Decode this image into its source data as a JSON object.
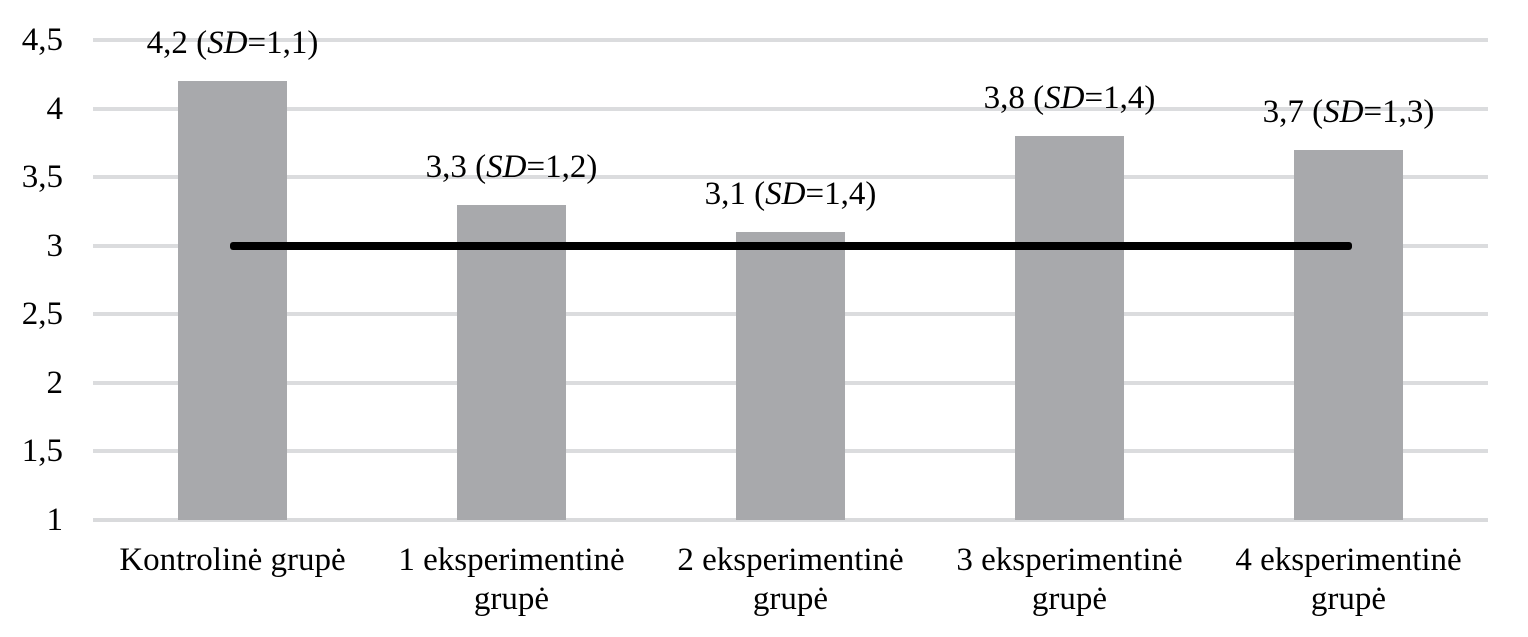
{
  "chart_data": {
    "type": "bar",
    "title": "",
    "xlabel": "",
    "ylabel": "",
    "grid": true,
    "legend": "none",
    "background_color": "#ffffff",
    "bar_color": "#a8a9ac",
    "gridline_color": "#dbdcde",
    "axis_line_color": "#d9dadc",
    "text_color": "#000000",
    "ylim": [
      1,
      4.5
    ],
    "y_tick_step": 0.5,
    "decimal_separator": ",",
    "y_ticks": [
      {
        "value": 4.5,
        "label": "4,5"
      },
      {
        "value": 4,
        "label": "4"
      },
      {
        "value": 3.5,
        "label": "3,5"
      },
      {
        "value": 3,
        "label": "3"
      },
      {
        "value": 2.5,
        "label": "2,5"
      },
      {
        "value": 2,
        "label": "2"
      },
      {
        "value": 1.5,
        "label": "1,5"
      },
      {
        "value": 1,
        "label": "1"
      }
    ],
    "categories": [
      "Kontrolinė grupė",
      "1 eksperimentinė grupė",
      "2 eksperimentinė grupė",
      "3 eksperimentinė grupė",
      "4 eksperimentinė grupė"
    ],
    "values": [
      4.2,
      3.3,
      3.1,
      3.8,
      3.7
    ],
    "sd_values": [
      1.1,
      1.2,
      1.4,
      1.4,
      1.3
    ],
    "sd_symbol": "SD",
    "bar_labels": [
      {
        "value_text": "4,2",
        "sd_text": "1,1",
        "full_text": "4,2 (SD=1,1)"
      },
      {
        "value_text": "3,3",
        "sd_text": "1,2",
        "full_text": "3,3 (SD=1,2)"
      },
      {
        "value_text": "3,1",
        "sd_text": "1,4",
        "full_text": "3,1 (SD=1,4)"
      },
      {
        "value_text": "3,8",
        "sd_text": "1,4",
        "full_text": "3,8 (SD=1,4)"
      },
      {
        "value_text": "3,7",
        "sd_text": "1,3",
        "full_text": "3,7 (SD=1,3)"
      }
    ],
    "reference_line": {
      "value": 3,
      "color": "#000000",
      "spans": "from first bar center to last bar center"
    }
  }
}
